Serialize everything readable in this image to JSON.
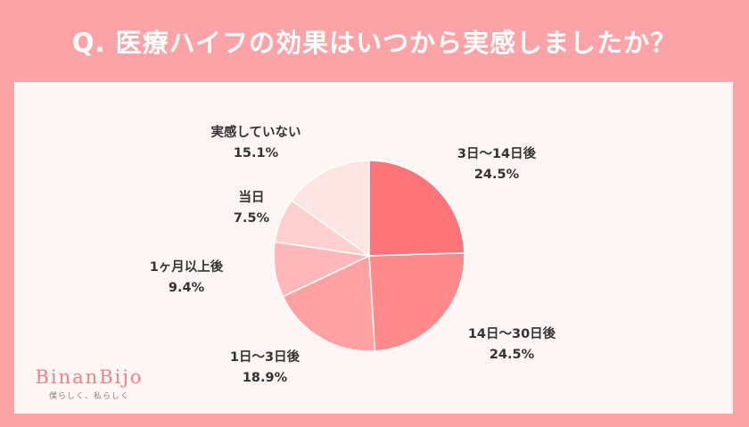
{
  "title": "Q. 医療ハイフの効果はいつから実感しましたか？",
  "chart_data": {
    "type": "pie",
    "slices": [
      {
        "label": "3日～14日後",
        "value": 24.5,
        "value_label": "24.5%",
        "color": "#fe7478"
      },
      {
        "label": "14日～30日後",
        "value": 24.5,
        "value_label": "24.5%",
        "color": "#ff898b"
      },
      {
        "label": "1日～3日後",
        "value": 18.9,
        "value_label": "18.9%",
        "color": "#ffa1a3"
      },
      {
        "label": "1ヶ月以上後",
        "value": 9.4,
        "value_label": "9.4%",
        "color": "#ffb8ba"
      },
      {
        "label": "当日",
        "value": 7.5,
        "value_label": "7.5%",
        "color": "#ffcfd0"
      },
      {
        "label": "実感していない",
        "value": 15.1,
        "value_label": "15.1%",
        "color": "#ffe4e4"
      }
    ]
  },
  "logo": {
    "name": "BinanBijo",
    "tagline": "僕らしく、私らしく"
  }
}
